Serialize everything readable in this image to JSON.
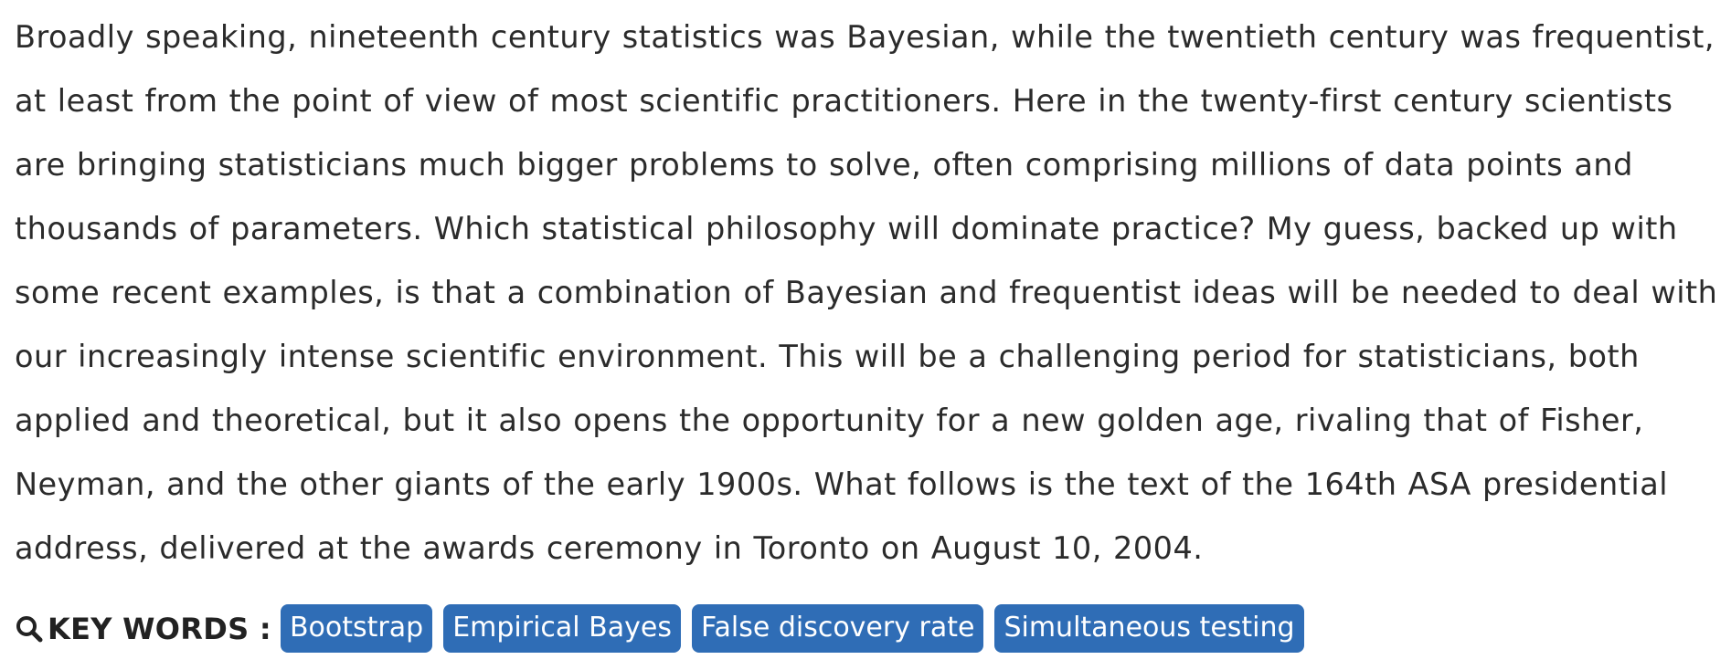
{
  "abstract": {
    "text": "Broadly speaking, nineteenth century statistics was Bayesian, while the twentieth century was frequentist, at least from the point of view of most scientific practitioners. Here in the twenty-first century scientists are bringing statisticians much bigger problems to solve, often comprising millions of data points and thousands of parameters. Which statistical philosophy will dominate practice? My guess, backed up with some recent examples, is that a combination of Bayesian and frequentist ideas will be needed to deal with our increasingly intense scientific environment. This will be a challenging period for statisticians, both applied and theoretical, but it also opens the opportunity for a new golden age, rivaling that of Fisher, Neyman, and the other giants of the early 1900s. What follows is the text of the 164th ASA presidential address, delivered at the awards ceremony in Toronto on August 10, 2004."
  },
  "keywords": {
    "icon": "search-icon",
    "label": "KEY WORDS :",
    "tag_color": "#2f6db6",
    "items": [
      "Bootstrap",
      "Empirical Bayes",
      "False discovery rate",
      "Simultaneous testing"
    ]
  }
}
